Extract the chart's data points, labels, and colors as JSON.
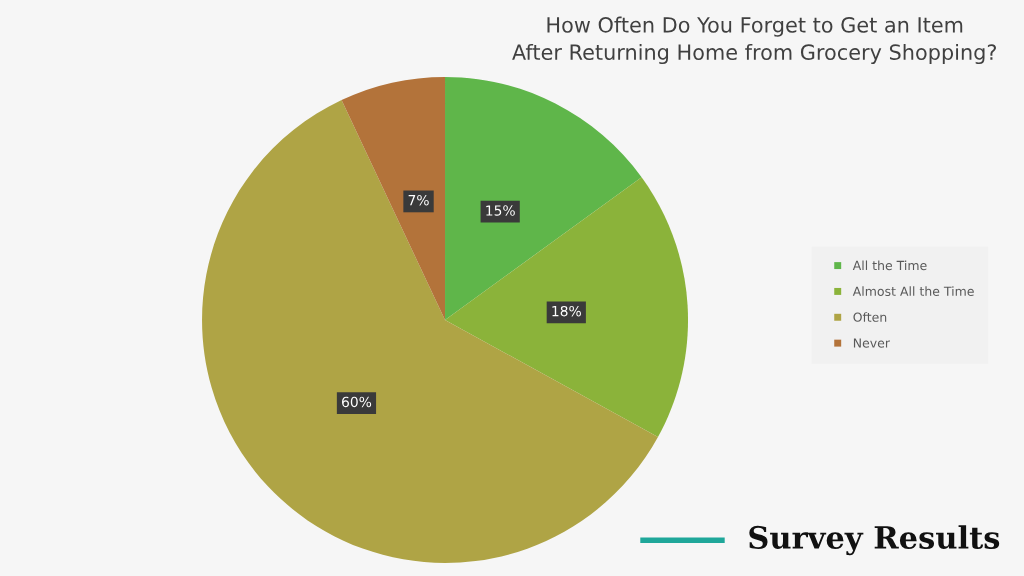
{
  "chart_data": {
    "type": "pie",
    "title": "How Often Do You Forget to Get an Item\nAfter Returning Home from Grocery Shopping?",
    "categories": [
      "All the Time",
      "Almost All the Time",
      "Often",
      "Never"
    ],
    "values": [
      15,
      18,
      60,
      7
    ],
    "colors": [
      "#5fb64a",
      "#8bb33a",
      "#afa445",
      "#b3733a"
    ],
    "value_labels": [
      "15%",
      "18%",
      "60%",
      "7%"
    ],
    "legend": "right",
    "annotations": [
      "Survey Results"
    ]
  }
}
